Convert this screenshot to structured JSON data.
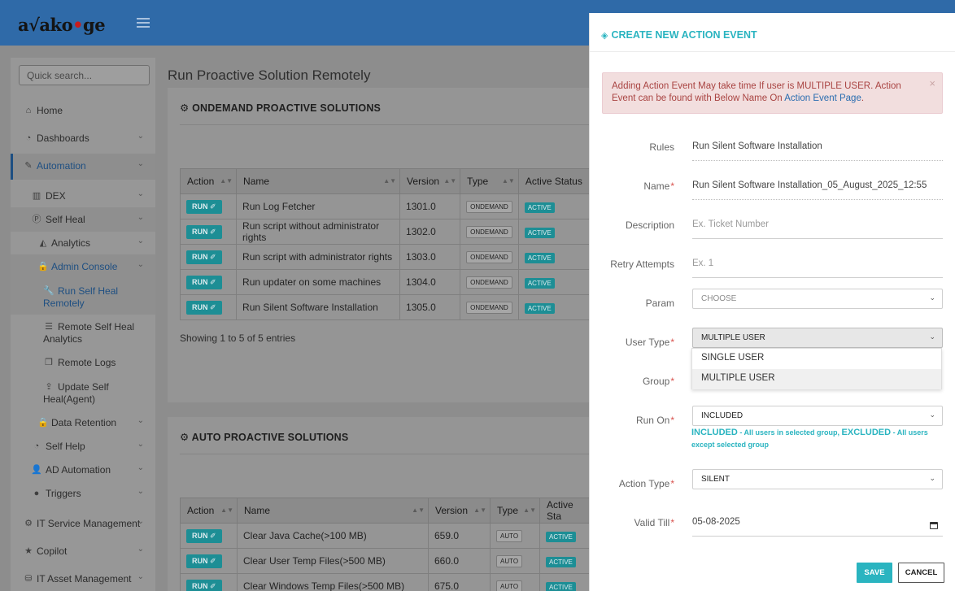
{
  "brand": {
    "logo_left": "a√ako",
    "logo_red": "•",
    "logo_right": "ge"
  },
  "sidebar": {
    "search_placeholder": "Quick search...",
    "items": [
      {
        "label": "Home",
        "icon": "home-icon"
      },
      {
        "label": "Dashboards",
        "icon": "dashboard-icon"
      },
      {
        "label": "Automation",
        "icon": "wand-icon"
      },
      {
        "label": "DEX",
        "icon": "bar-chart-icon"
      },
      {
        "label": "Self Heal",
        "icon": "p-badge-icon"
      },
      {
        "label": "Analytics",
        "icon": "area-chart-icon"
      },
      {
        "label": "Admin Console",
        "icon": "lock-icon"
      },
      {
        "label": "Run Self Heal Remotely",
        "icon": "wrench-icon"
      },
      {
        "label": "Remote Self Heal Analytics",
        "icon": "list-icon"
      },
      {
        "label": "Remote Logs",
        "icon": "copy-icon"
      },
      {
        "label": "Update Self Heal(Agent)",
        "icon": "upload-icon"
      },
      {
        "label": "Data Retention",
        "icon": "lock-icon"
      },
      {
        "label": "Self Help",
        "icon": "dashboard-icon"
      },
      {
        "label": "AD Automation",
        "icon": "user-icon"
      },
      {
        "label": "Triggers",
        "icon": "circle-icon"
      },
      {
        "label": "IT Service Management",
        "icon": "cogs-icon"
      },
      {
        "label": "Copilot",
        "icon": "star-icon"
      },
      {
        "label": "IT Asset Management",
        "icon": "database-icon"
      }
    ]
  },
  "main": {
    "page_title": "Run Proactive Solution Remotely",
    "ondemand": {
      "title": "ONDEMAND PROACTIVE SOLUTIONS",
      "columns": [
        "Action",
        "Name",
        "Version",
        "Type",
        "Active Status"
      ],
      "rows": [
        {
          "action": "RUN",
          "name": "Run Log Fetcher",
          "version": "1301.0",
          "type": "ONDEMAND",
          "status": "ACTIVE"
        },
        {
          "action": "RUN",
          "name": "Run script without administrator rights",
          "version": "1302.0",
          "type": "ONDEMAND",
          "status": "ACTIVE"
        },
        {
          "action": "RUN",
          "name": "Run script with administrator rights",
          "version": "1303.0",
          "type": "ONDEMAND",
          "status": "ACTIVE"
        },
        {
          "action": "RUN",
          "name": "Run updater on some machines",
          "version": "1304.0",
          "type": "ONDEMAND",
          "status": "ACTIVE"
        },
        {
          "action": "RUN",
          "name": "Run Silent Software Installation",
          "version": "1305.0",
          "type": "ONDEMAND",
          "status": "ACTIVE"
        }
      ],
      "showing": "Showing 1 to 5 of 5 entries"
    },
    "auto": {
      "title": "AUTO PROACTIVE SOLUTIONS",
      "columns": [
        "Action",
        "Name",
        "Version",
        "Type",
        "Active Sta"
      ],
      "rows": [
        {
          "action": "RUN",
          "name": "Clear Java Cache(>100 MB)",
          "version": "659.0",
          "type": "AUTO",
          "status": "ACTIVE"
        },
        {
          "action": "RUN",
          "name": "Clear User Temp Files(>500 MB)",
          "version": "660.0",
          "type": "AUTO",
          "status": "ACTIVE"
        },
        {
          "action": "RUN",
          "name": "Clear Windows Temp Files(>500 MB)",
          "version": "675.0",
          "type": "AUTO",
          "status": "ACTIVE"
        }
      ]
    }
  },
  "panel": {
    "title": "CREATE NEW ACTION EVENT",
    "alert": {
      "text": "Adding Action Event May take time If user is MULTIPLE USER. Action Event can be found with Below Name On ",
      "link": "Action Event Page",
      "suffix": ".",
      "close": "×"
    },
    "fields": {
      "rules": {
        "label": "Rules",
        "value": "Run Silent Software Installation"
      },
      "name": {
        "label": "Name",
        "value": "Run Silent Software Installation_05_August_2025_12:55",
        "required": "*"
      },
      "description": {
        "label": "Description",
        "placeholder": "Ex. Ticket Number"
      },
      "retry": {
        "label": "Retry Attempts",
        "placeholder": "Ex. 1"
      },
      "param": {
        "label": "Param",
        "value": "CHOOSE"
      },
      "user_type": {
        "label": "User Type",
        "value": "MULTIPLE USER",
        "required": "*",
        "options": [
          "SINGLE USER",
          "MULTIPLE USER"
        ]
      },
      "group": {
        "label": "Group",
        "required": "*"
      },
      "run_on": {
        "label": "Run On",
        "value": "INCLUDED",
        "required": "*"
      },
      "action_type": {
        "label": "Action Type",
        "value": "SILENT",
        "required": "*"
      },
      "valid_till": {
        "label": "Valid Till",
        "value": "05-08-2025",
        "required": "*"
      }
    },
    "hint": {
      "inc": "INCLUDED",
      "inc_text": " - All users in selected group, ",
      "exc": "EXCLUDED",
      "exc_text": " - All users except selected group"
    },
    "save_label": "SAVE",
    "cancel_label": "CANCEL"
  },
  "colors": {
    "accent": "#2ab4c0",
    "topbar": "#2f6aa8",
    "alert_bg": "#f2dede",
    "alert_text": "#a94442",
    "run_button": "#1d8e95"
  }
}
